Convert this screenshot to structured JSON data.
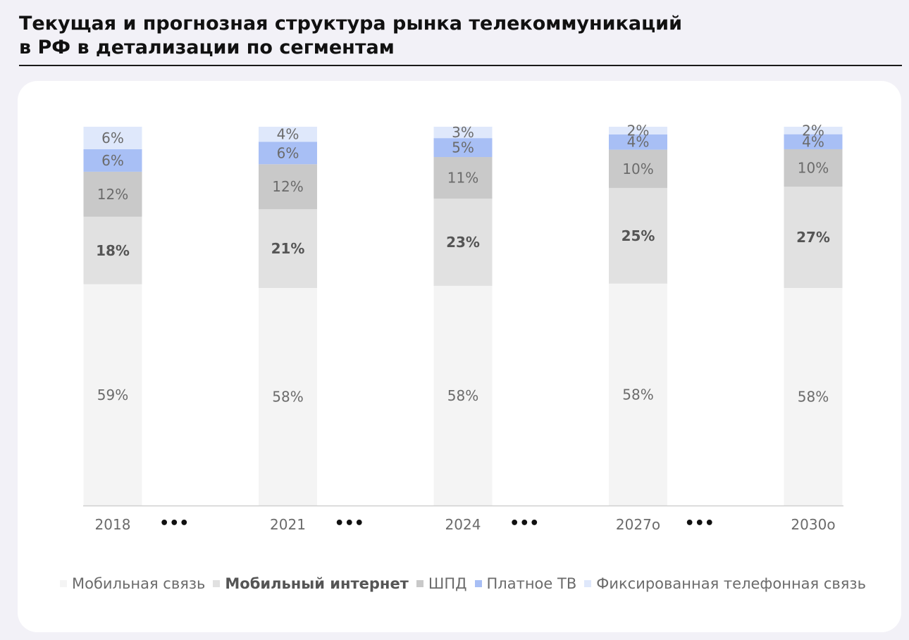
{
  "title": {
    "line1": "Текущая и прогнозная структура рынка телекоммуникаций",
    "line2": "в РФ в детализации по сегментам"
  },
  "separator_label": "•••",
  "chart_data": {
    "type": "bar",
    "stacked": true,
    "normalized": true,
    "categories": [
      "2018",
      "2021",
      "2024",
      "2027о",
      "2030о"
    ],
    "series": [
      {
        "name": "Мобильная связь",
        "values": [
          59,
          58,
          58,
          58,
          58
        ],
        "color": "#f4f4f4",
        "label_bold": false
      },
      {
        "name": "Мобильный интернет",
        "values": [
          18,
          21,
          23,
          25,
          27
        ],
        "color": "#e1e1e1",
        "label_bold": true
      },
      {
        "name": "ШПД",
        "values": [
          12,
          12,
          11,
          10,
          10
        ],
        "color": "#c9c9c9",
        "label_bold": false
      },
      {
        "name": "Платное ТВ",
        "values": [
          6,
          6,
          5,
          4,
          4
        ],
        "color": "#a8bff5",
        "label_bold": false
      },
      {
        "name": "Фиксированная телефонная связь",
        "values": [
          6,
          4,
          3,
          2,
          2
        ],
        "color": "#dfe8fb",
        "label_bold": false
      }
    ],
    "value_suffix": "%",
    "legend_position": "bottom",
    "grid": false
  }
}
